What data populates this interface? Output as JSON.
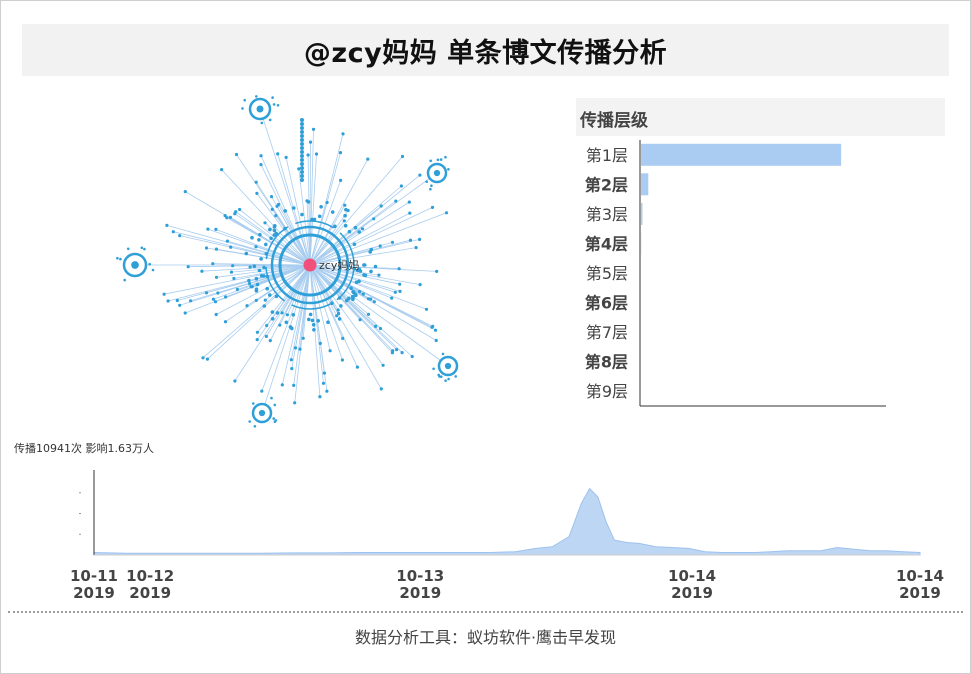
{
  "page": {
    "title": "@zcy妈妈 单条博文传播分析",
    "stats_text": "传播10941次 影响1.63万人",
    "footer": "数据分析工具：蚁坊软件·鹰击早发现"
  },
  "network": {
    "center_label": "zcy妈妈",
    "colors": {
      "center": "#f0507a",
      "node": "#2f9fd8",
      "edge": "#a9cdef"
    }
  },
  "levels": {
    "title": "传播层级",
    "bar_color": "#aacbf2"
  },
  "colors": {
    "area": "#bcd6f4",
    "area_stroke": "#9ec2ee",
    "axis": "#333333"
  },
  "chart_data": [
    {
      "type": "bar",
      "orientation": "horizontal",
      "title": "传播层级",
      "categories": [
        "第1层",
        "第2层",
        "第3层",
        "第4层",
        "第5层",
        "第6层",
        "第7层",
        "第8层",
        "第9层"
      ],
      "values": [
        9600,
        350,
        70,
        10,
        0,
        0,
        0,
        0,
        0
      ],
      "xlim": [
        0,
        11800
      ]
    },
    {
      "type": "area",
      "xlabel": "",
      "ylabel": "",
      "x_ticks": [
        {
          "x": 0.0,
          "line1": "10-11",
          "line2": "2019"
        },
        {
          "x": 0.068,
          "line1": "10-12",
          "line2": "2019"
        },
        {
          "x": 0.395,
          "line1": "10-13",
          "line2": "2019"
        },
        {
          "x": 0.724,
          "line1": "10-14",
          "line2": "2019"
        },
        {
          "x": 1.0,
          "line1": "10-14",
          "line2": "2019"
        }
      ],
      "x": [
        0,
        0.04,
        0.08,
        0.12,
        0.16,
        0.2,
        0.24,
        0.28,
        0.32,
        0.36,
        0.4,
        0.44,
        0.48,
        0.51,
        0.535,
        0.555,
        0.575,
        0.59,
        0.6,
        0.61,
        0.62,
        0.63,
        0.645,
        0.66,
        0.68,
        0.7,
        0.72,
        0.74,
        0.76,
        0.78,
        0.8,
        0.82,
        0.84,
        0.86,
        0.88,
        0.9,
        0.92,
        0.94,
        0.96,
        0.98,
        1.0
      ],
      "y": [
        3,
        2,
        2,
        2,
        2,
        2,
        2.5,
        2.5,
        3,
        3,
        3,
        3,
        3,
        4,
        8,
        10,
        22,
        62,
        80,
        70,
        40,
        18,
        15,
        14,
        10,
        9,
        8,
        4,
        3,
        3,
        3,
        4,
        5,
        5,
        5,
        9,
        7,
        5,
        5,
        4,
        3
      ],
      "ylim": [
        0,
        100
      ]
    }
  ]
}
